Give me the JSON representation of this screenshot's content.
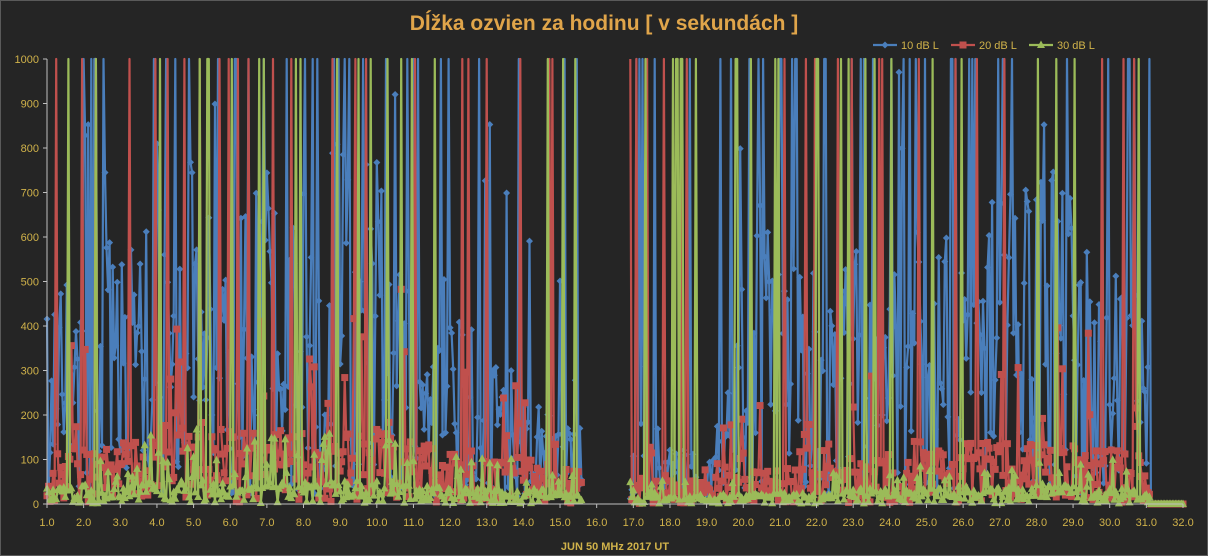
{
  "chart_data": {
    "type": "line",
    "title": "Dĺžka ozvien za hodinu [ v sekundách ]",
    "xlabel": "JUN 50 MHz   2017  UT",
    "ylabel": "",
    "xlim": [
      1.0,
      32.0
    ],
    "ylim": [
      0,
      1000
    ],
    "x_ticks": [
      "1.0",
      "2.0",
      "3.0",
      "4.0",
      "5.0",
      "6.0",
      "7.0",
      "8.0",
      "9.0",
      "10.0",
      "11.0",
      "12.0",
      "13.0",
      "14.0",
      "15.0",
      "16.0",
      "17.0",
      "18.0",
      "19.0",
      "20.0",
      "21.0",
      "22.0",
      "23.0",
      "24.0",
      "25.0",
      "26.0",
      "27.0",
      "28.0",
      "29.0",
      "30.0",
      "31.0",
      "32.0"
    ],
    "y_ticks": [
      "0",
      "100",
      "200",
      "300",
      "400",
      "500",
      "600",
      "700",
      "800",
      "900",
      "1000"
    ],
    "grid": false,
    "legend_position": "top-right",
    "samples_per_day": 24,
    "gaps": [
      [
        15.6,
        16.9
      ]
    ],
    "flat_end_start": 31.1,
    "colors": {
      "background": "#252525",
      "axis": "#bfbfbf",
      "tick_text": "#d0b24a",
      "title": "#e0a54a"
    },
    "series": [
      {
        "name": "10 dB L",
        "color": "#4a7ebb",
        "marker": "diamond",
        "profile": [
          [
            1.0,
            320
          ],
          [
            1.5,
            300
          ],
          [
            2.0,
            230
          ],
          [
            2.5,
            300
          ],
          [
            3.0,
            420
          ],
          [
            3.5,
            330
          ],
          [
            4.0,
            380
          ],
          [
            4.5,
            400
          ],
          [
            5.0,
            460
          ],
          [
            5.5,
            520
          ],
          [
            6.0,
            380
          ],
          [
            6.5,
            460
          ],
          [
            7.0,
            430
          ],
          [
            7.5,
            380
          ],
          [
            8.0,
            420
          ],
          [
            8.5,
            500
          ],
          [
            9.0,
            460
          ],
          [
            9.5,
            420
          ],
          [
            10.0,
            470
          ],
          [
            10.5,
            360
          ],
          [
            11.0,
            260
          ],
          [
            11.5,
            220
          ],
          [
            12.0,
            260
          ],
          [
            12.5,
            240
          ],
          [
            13.0,
            190
          ],
          [
            13.5,
            180
          ],
          [
            14.0,
            160
          ],
          [
            14.5,
            150
          ],
          [
            15.0,
            130
          ],
          [
            15.5,
            100
          ],
          [
            16.9,
            60
          ],
          [
            17.5,
            70
          ],
          [
            18.0,
            70
          ],
          [
            18.5,
            70
          ],
          [
            19.0,
            60
          ],
          [
            19.5,
            150
          ],
          [
            20.0,
            290
          ],
          [
            20.5,
            400
          ],
          [
            21.0,
            300
          ],
          [
            21.5,
            350
          ],
          [
            22.0,
            300
          ],
          [
            22.5,
            310
          ],
          [
            23.0,
            340
          ],
          [
            23.5,
            330
          ],
          [
            24.0,
            290
          ],
          [
            24.5,
            340
          ],
          [
            25.0,
            360
          ],
          [
            25.5,
            350
          ],
          [
            26.0,
            310
          ],
          [
            26.5,
            370
          ],
          [
            27.0,
            430
          ],
          [
            27.5,
            400
          ],
          [
            28.0,
            420
          ],
          [
            28.5,
            430
          ],
          [
            29.0,
            420
          ],
          [
            29.5,
            300
          ],
          [
            30.0,
            300
          ],
          [
            30.5,
            300
          ],
          [
            31.0,
            250
          ]
        ]
      },
      {
        "name": "20 dB L",
        "color": "#c0504d",
        "marker": "square",
        "profile": [
          [
            1.0,
            60
          ],
          [
            1.5,
            80
          ],
          [
            2.0,
            70
          ],
          [
            2.5,
            70
          ],
          [
            3.0,
            80
          ],
          [
            3.5,
            80
          ],
          [
            4.0,
            100
          ],
          [
            4.5,
            120
          ],
          [
            5.0,
            120
          ],
          [
            5.5,
            100
          ],
          [
            6.0,
            100
          ],
          [
            6.5,
            100
          ],
          [
            7.0,
            110
          ],
          [
            7.5,
            90
          ],
          [
            8.0,
            110
          ],
          [
            8.5,
            90
          ],
          [
            9.0,
            90
          ],
          [
            9.5,
            90
          ],
          [
            10.0,
            100
          ],
          [
            10.5,
            110
          ],
          [
            11.0,
            80
          ],
          [
            11.5,
            80
          ],
          [
            12.0,
            70
          ],
          [
            12.5,
            60
          ],
          [
            13.0,
            60
          ],
          [
            13.5,
            60
          ],
          [
            14.0,
            60
          ],
          [
            14.5,
            60
          ],
          [
            15.0,
            50
          ],
          [
            15.5,
            40
          ],
          [
            16.9,
            30
          ],
          [
            17.5,
            30
          ],
          [
            18.0,
            30
          ],
          [
            18.5,
            30
          ],
          [
            19.0,
            30
          ],
          [
            19.5,
            40
          ],
          [
            20.0,
            40
          ],
          [
            20.5,
            50
          ],
          [
            21.0,
            50
          ],
          [
            21.5,
            50
          ],
          [
            22.0,
            50
          ],
          [
            22.5,
            50
          ],
          [
            23.0,
            60
          ],
          [
            23.5,
            60
          ],
          [
            24.0,
            60
          ],
          [
            24.5,
            60
          ],
          [
            25.0,
            70
          ],
          [
            25.5,
            70
          ],
          [
            26.0,
            80
          ],
          [
            26.5,
            80
          ],
          [
            27.0,
            80
          ],
          [
            27.5,
            80
          ],
          [
            28.0,
            80
          ],
          [
            28.5,
            80
          ],
          [
            29.0,
            80
          ],
          [
            29.5,
            80
          ],
          [
            30.0,
            70
          ],
          [
            30.5,
            70
          ],
          [
            31.0,
            60
          ]
        ]
      },
      {
        "name": "30 dB L",
        "color": "#9bbb59",
        "marker": "triangle",
        "profile": [
          [
            1.0,
            20
          ],
          [
            1.5,
            25
          ],
          [
            2.0,
            25
          ],
          [
            2.5,
            25
          ],
          [
            3.0,
            30
          ],
          [
            3.5,
            30
          ],
          [
            4.0,
            30
          ],
          [
            4.5,
            35
          ],
          [
            5.0,
            35
          ],
          [
            5.5,
            30
          ],
          [
            6.0,
            30
          ],
          [
            6.5,
            30
          ],
          [
            7.0,
            30
          ],
          [
            7.5,
            30
          ],
          [
            8.0,
            30
          ],
          [
            8.5,
            30
          ],
          [
            9.0,
            30
          ],
          [
            9.5,
            30
          ],
          [
            10.0,
            30
          ],
          [
            10.5,
            30
          ],
          [
            11.0,
            25
          ],
          [
            11.5,
            25
          ],
          [
            12.0,
            25
          ],
          [
            12.5,
            20
          ],
          [
            13.0,
            20
          ],
          [
            13.5,
            20
          ],
          [
            14.0,
            20
          ],
          [
            14.5,
            20
          ],
          [
            15.0,
            15
          ],
          [
            15.5,
            15
          ],
          [
            16.9,
            10
          ],
          [
            17.5,
            10
          ],
          [
            18.0,
            10
          ],
          [
            18.5,
            10
          ],
          [
            19.0,
            10
          ],
          [
            19.5,
            15
          ],
          [
            20.0,
            15
          ],
          [
            20.5,
            15
          ],
          [
            21.0,
            15
          ],
          [
            21.5,
            15
          ],
          [
            22.0,
            15
          ],
          [
            22.5,
            15
          ],
          [
            23.0,
            20
          ],
          [
            23.5,
            20
          ],
          [
            24.0,
            20
          ],
          [
            24.5,
            20
          ],
          [
            25.0,
            20
          ],
          [
            25.5,
            20
          ],
          [
            26.0,
            25
          ],
          [
            26.5,
            25
          ],
          [
            27.0,
            25
          ],
          [
            27.5,
            25
          ],
          [
            28.0,
            25
          ],
          [
            28.5,
            25
          ],
          [
            29.0,
            25
          ],
          [
            29.5,
            20
          ],
          [
            30.0,
            20
          ],
          [
            30.5,
            20
          ],
          [
            31.0,
            15
          ]
        ]
      }
    ]
  }
}
